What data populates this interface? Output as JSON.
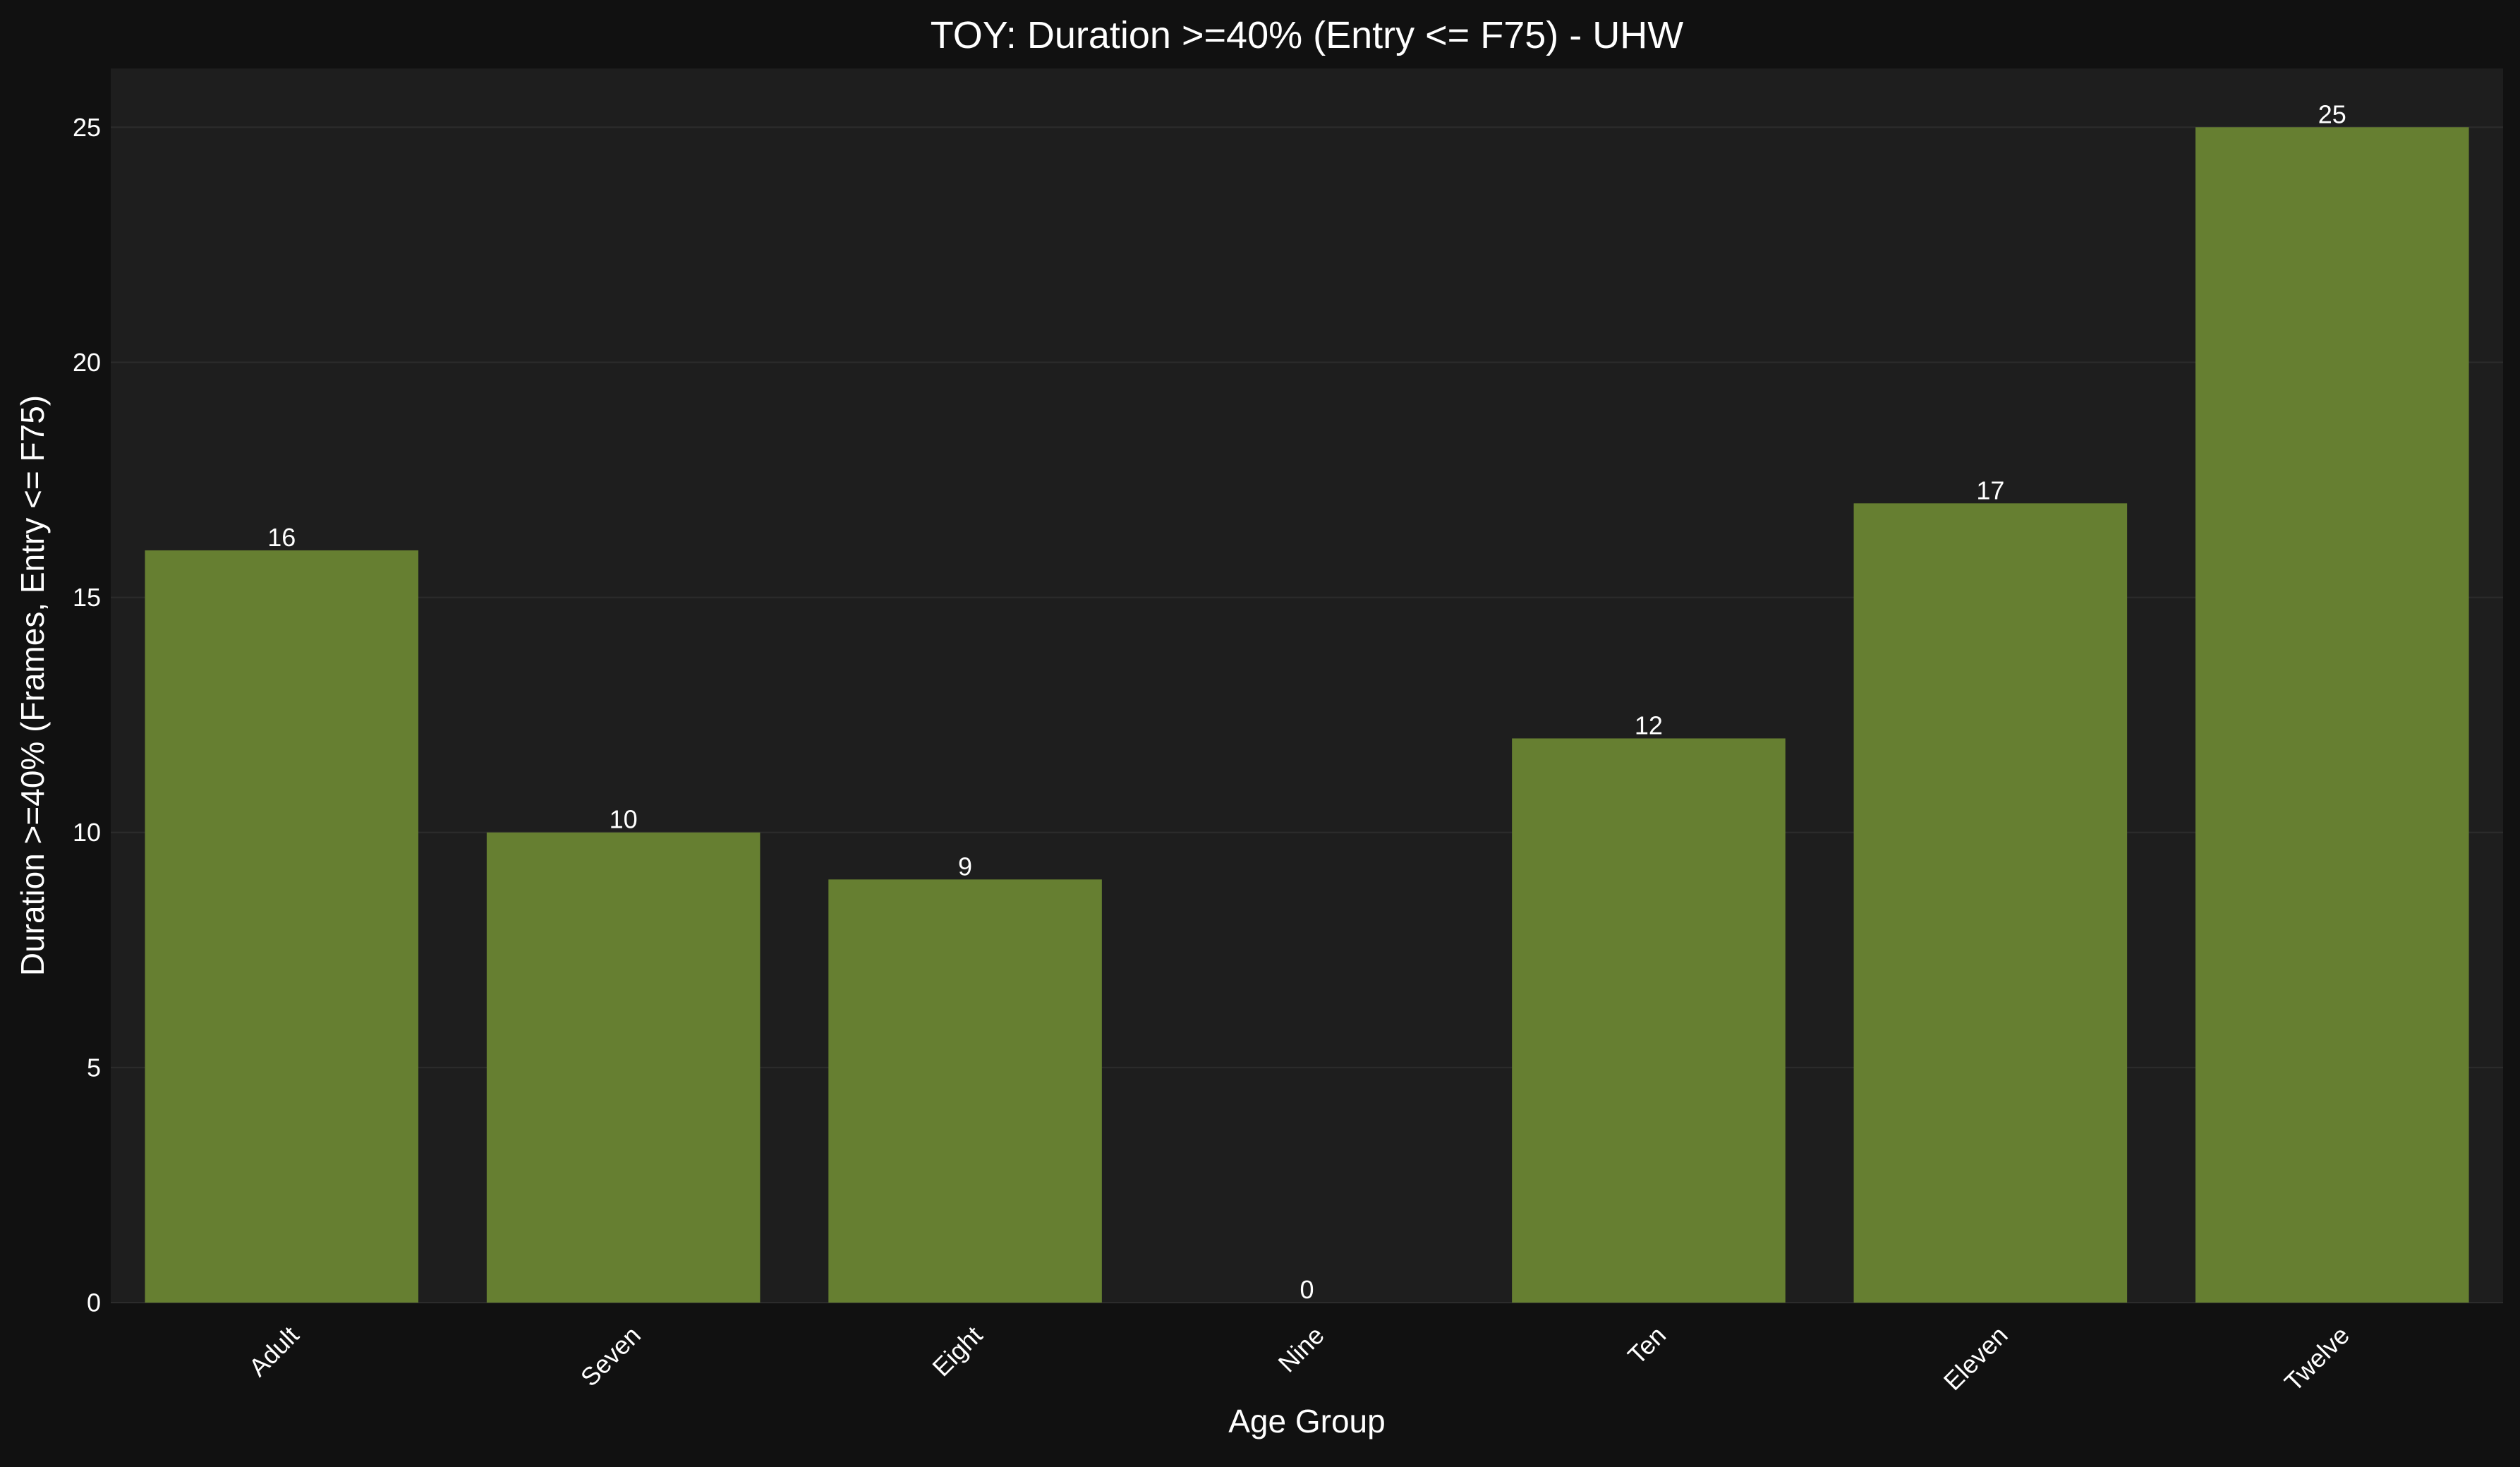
{
  "chart_data": {
    "type": "bar",
    "title": "TOY: Duration >=40% (Entry <= F75) - UHW",
    "xlabel": "Age Group",
    "ylabel": "Duration >=40% (Frames, Entry <= F75)",
    "categories": [
      "Adult",
      "Seven",
      "Eight",
      "Nine",
      "Ten",
      "Eleven",
      "Twelve"
    ],
    "values": [
      16,
      10,
      9,
      0,
      12,
      17,
      25
    ],
    "data_labels": [
      "16",
      "10",
      "9",
      "0",
      "12",
      "17",
      "25"
    ],
    "ylim": [
      0,
      26.25
    ],
    "yticks": [
      0,
      5,
      10,
      15,
      20,
      25
    ],
    "ytick_labels": [
      "0",
      "5",
      "10",
      "15",
      "20",
      "25"
    ],
    "grid": true,
    "legend": "none",
    "colors": {
      "figure_bg": "#111111",
      "plot_bg": "#1e1e1e",
      "bar": "#667f31",
      "grid": "#2c2c2c",
      "text": "#ffffff"
    }
  }
}
